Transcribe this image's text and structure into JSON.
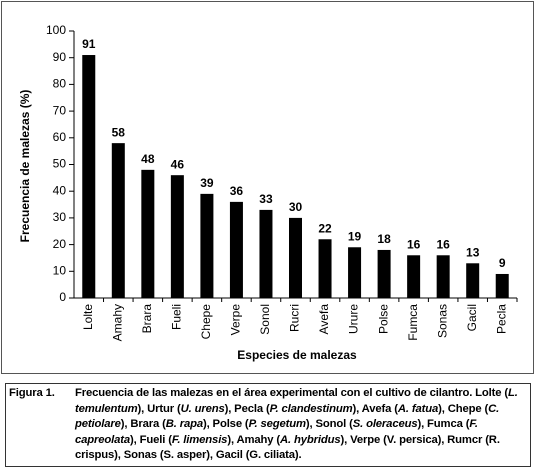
{
  "chart_data": {
    "type": "bar",
    "y_label": "Frecuencia de malezas (%)",
    "x_label": "Especies de malezas",
    "categories": [
      "Lolte",
      "Amahy",
      "Brara",
      "Fueli",
      "Chepe",
      "Verpe",
      "Sonol",
      "Rucri",
      "Avefa",
      "Urure",
      "Polse",
      "Fumca",
      "Sonas",
      "Gacil",
      "Pecla"
    ],
    "values": [
      91,
      58,
      48,
      46,
      39,
      36,
      33,
      30,
      22,
      19,
      18,
      16,
      16,
      13,
      9
    ],
    "color": "#000000",
    "ylim": [
      0,
      100
    ],
    "yticks": [
      0,
      10,
      20,
      30,
      40,
      50,
      60,
      70,
      80,
      90,
      100
    ]
  },
  "caption": {
    "label": "Figura 1.",
    "runs": [
      {
        "text": "Frecuencia de las malezas en el área experimental con el cultivo de cilantro. Lolte (",
        "italic": false
      },
      {
        "text": "L. temulentum",
        "italic": true
      },
      {
        "text": "), Urtur (",
        "italic": false
      },
      {
        "text": "U. urens",
        "italic": true
      },
      {
        "text": "), Pecla (",
        "italic": false
      },
      {
        "text": "P. clandestinum",
        "italic": true
      },
      {
        "text": "), Avefa (",
        "italic": false
      },
      {
        "text": "A. fatua",
        "italic": true
      },
      {
        "text": "), Chepe (",
        "italic": false
      },
      {
        "text": "C. petiolare",
        "italic": true
      },
      {
        "text": "), Brara (",
        "italic": false
      },
      {
        "text": "B. rapa",
        "italic": true
      },
      {
        "text": "), Polse (",
        "italic": false
      },
      {
        "text": "P. segetum",
        "italic": true
      },
      {
        "text": "), Sonol (",
        "italic": false
      },
      {
        "text": "S. oleraceus",
        "italic": true
      },
      {
        "text": "), Fumca (",
        "italic": false
      },
      {
        "text": "F. capreolata",
        "italic": true
      },
      {
        "text": "), Fueli (",
        "italic": false
      },
      {
        "text": "F. limensis",
        "italic": true
      },
      {
        "text": "), Amahy (",
        "italic": false
      },
      {
        "text": "A. hybridus",
        "italic": true
      },
      {
        "text": "), Verpe (V. persica), Rumcr (R. crispus), Sonas (S. asper), Gacil (G. ciliata).",
        "italic": false
      }
    ]
  }
}
